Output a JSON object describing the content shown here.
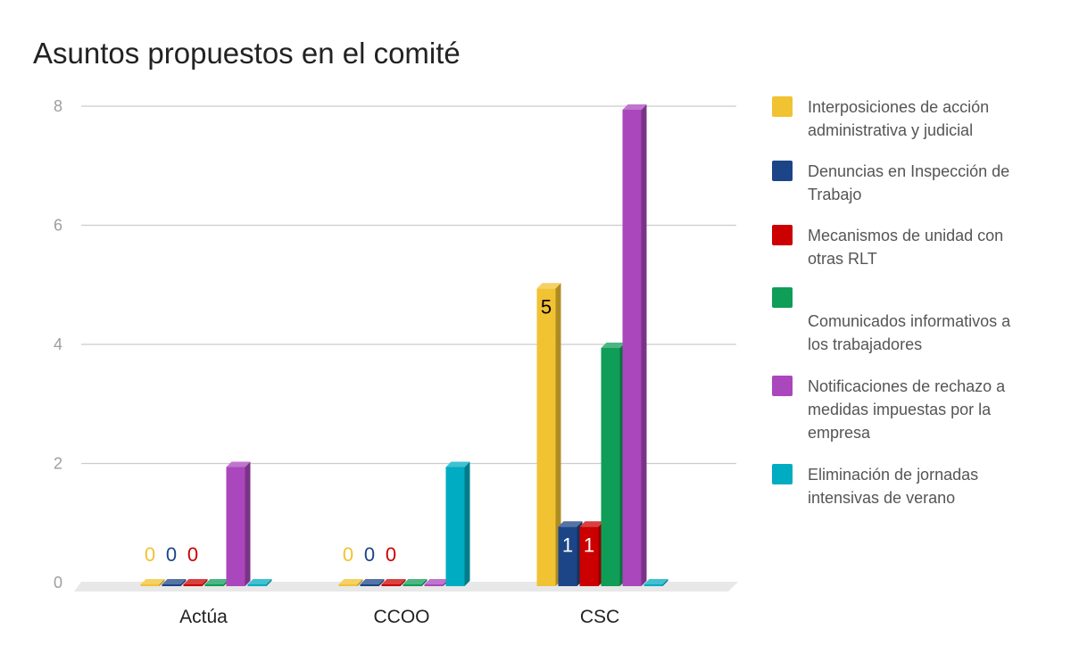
{
  "chart_data": {
    "type": "bar",
    "title": "Asuntos propuestos en el comité",
    "categories": [
      "Actúa",
      "CCOO",
      "CSC"
    ],
    "ylim": [
      0,
      8
    ],
    "yticks": [
      "0",
      "2",
      "4",
      "6",
      "8"
    ],
    "grid": true,
    "legend_position": "right",
    "series": [
      {
        "name": "Interposiciones de acción administrativa y judicial",
        "values": [
          0,
          0,
          5
        ],
        "labels": [
          "0",
          "0",
          "5"
        ],
        "color": "#f1c232"
      },
      {
        "name": "Denuncias en Inspección de Trabajo",
        "values": [
          0,
          0,
          1
        ],
        "labels": [
          "0",
          "0",
          "1"
        ],
        "color": "#1c4587"
      },
      {
        "name": "Mecanismos de unidad con otras RLT",
        "values": [
          0,
          0,
          1
        ],
        "labels": [
          "0",
          "0",
          "1"
        ],
        "color": "#cc0000"
      },
      {
        "name": "Comunicados informativos a los trabajadores",
        "values": [
          0,
          0,
          4
        ],
        "labels": [
          "",
          "",
          ""
        ],
        "color": "#0f9d58"
      },
      {
        "name": "Notificaciones de rechazo a medidas impuestas por la empresa",
        "values": [
          2,
          0,
          8
        ],
        "labels": [
          "",
          "",
          ""
        ],
        "color": "#ab47bc"
      },
      {
        "name": "Eliminación de jornadas intensivas de verano",
        "values": [
          0,
          2,
          0
        ],
        "labels": [
          "",
          "",
          ""
        ],
        "color": "#00acc1"
      }
    ],
    "legend_lines": [
      [
        "Interposiciones de acción",
        "administrativa y judicial"
      ],
      [
        "Denuncias en Inspección de",
        "Trabajo"
      ],
      [
        "Mecanismos de unidad con",
        "otras RLT"
      ],
      [
        "",
        "Comunicados informativos a",
        "los trabajadores"
      ],
      [
        "Notificaciones de rechazo a",
        "medidas impuestas por la",
        "empresa"
      ],
      [
        "Eliminación de jornadas",
        "intensivas de verano"
      ]
    ]
  }
}
